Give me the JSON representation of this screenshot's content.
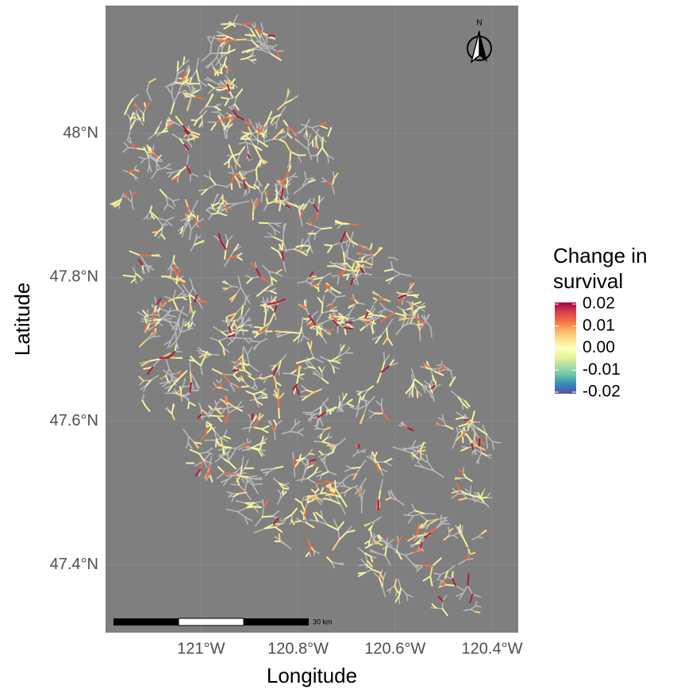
{
  "chart_data": {
    "type": "map",
    "x_label": "Longitude",
    "y_label": "Latitude",
    "xlim": [
      -121.197,
      -120.346
    ],
    "xticks": [
      {
        "value": -121,
        "label": "121°W"
      },
      {
        "value": -120.8,
        "label": "120.8°W"
      },
      {
        "value": -120.6,
        "label": "120.6°W"
      },
      {
        "value": -120.4,
        "label": "120.4°W"
      }
    ],
    "ylim": [
      47.306,
      48.178
    ],
    "yticks": [
      {
        "value": 47.4,
        "label": "47.4°N"
      },
      {
        "value": 47.6,
        "label": "47.6°N"
      },
      {
        "value": 47.8,
        "label": "47.8°N"
      },
      {
        "value": 48,
        "label": "48°N"
      }
    ],
    "grid": true,
    "legend": {
      "title": "Change in survival",
      "lim": [
        -0.02,
        0.02
      ],
      "ticks": [
        0.02,
        0.01,
        {
          "value": 0,
          "label": "0.00"
        },
        -0.01,
        -0.02
      ],
      "colors": [
        "#5e4fa2",
        "#3288bd",
        "#66c2a5",
        "#abdda4",
        "#e6f598",
        "#ffffbf",
        "#fee08b",
        "#fdae61",
        "#f46d43",
        "#d53e4f",
        "#9e0142"
      ]
    },
    "scale_bar": {
      "label": "30 km"
    },
    "north_arrow": {
      "label": "N"
    }
  }
}
